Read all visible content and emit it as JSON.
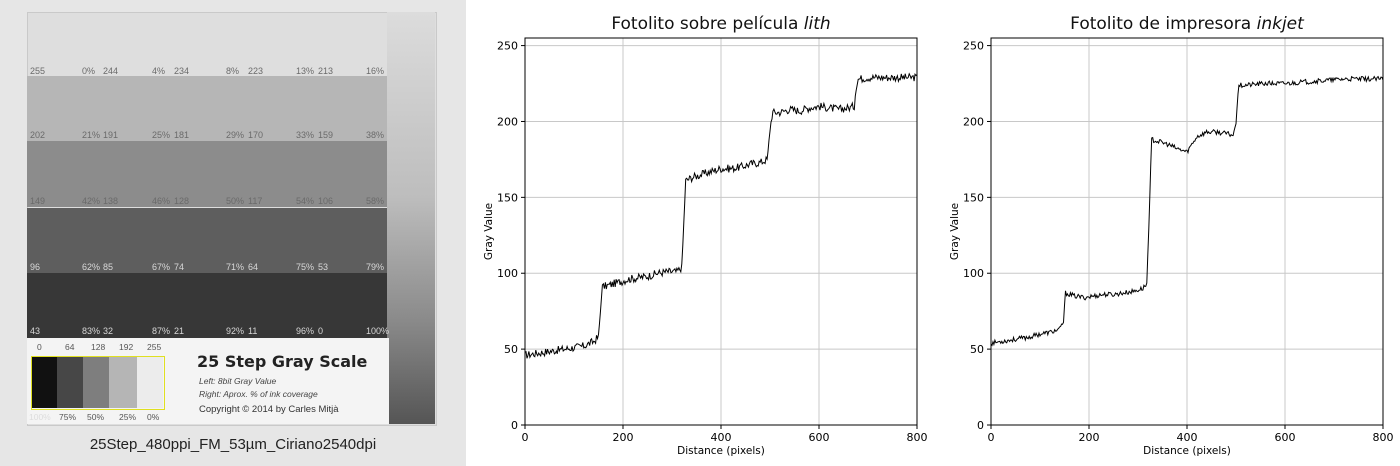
{
  "photo": {
    "caption": "25Step_480ppi_FM_53µm_Ciriano2540dpi",
    "rows": [
      [
        [
          "255",
          "0%"
        ],
        [
          "244",
          "4%"
        ],
        [
          "234",
          "8%"
        ],
        [
          "223",
          "13%"
        ],
        [
          "213",
          "16%"
        ]
      ],
      [
        [
          "202",
          "21%"
        ],
        [
          "191",
          "25%"
        ],
        [
          "181",
          "29%"
        ],
        [
          "170",
          "33%"
        ],
        [
          "159",
          "38%"
        ]
      ],
      [
        [
          "149",
          "42%"
        ],
        [
          "138",
          "46%"
        ],
        [
          "128",
          "50%"
        ],
        [
          "117",
          "54%"
        ],
        [
          "106",
          "58%"
        ]
      ],
      [
        [
          "96",
          "62%"
        ],
        [
          "85",
          "67%"
        ],
        [
          "74",
          "71%"
        ],
        [
          "64",
          "75%"
        ],
        [
          "53",
          "79%"
        ]
      ],
      [
        [
          "43",
          "83%"
        ],
        [
          "32",
          "87%"
        ],
        [
          "21",
          "92%"
        ],
        [
          "11",
          "96%"
        ],
        [
          "0",
          "100%"
        ]
      ]
    ],
    "card": {
      "title": "25 Step Gray Scale",
      "line1": "Left: 8bit Gray Value",
      "line2": "Right: Aprox. % of ink coverage",
      "copyright": "Copyright © 2014 by Carles Mitjà",
      "top_values": [
        "0",
        "64",
        "128",
        "192",
        "255"
      ],
      "bottom_values": [
        "100%",
        "75%",
        "50%",
        "25%",
        "0%"
      ]
    }
  },
  "chart_data": [
    {
      "type": "line",
      "title_plain": "Fotolito sobre película ",
      "title_italic": "lith",
      "xlabel": "Distance (pixels)",
      "ylabel": "Gray Value",
      "xlim": [
        0,
        800
      ],
      "ylim": [
        0,
        255
      ],
      "xticks": [
        0,
        200,
        400,
        600,
        800
      ],
      "yticks": [
        0,
        50,
        100,
        150,
        200,
        250
      ],
      "grid": true,
      "series": [
        {
          "x": [
            0,
            20,
            40,
            60,
            80,
            100,
            120,
            140,
            150,
            155,
            157,
            170,
            190,
            210,
            230,
            250,
            270,
            290,
            310,
            320,
            325,
            328,
            340,
            360,
            380,
            400,
            420,
            440,
            460,
            480,
            495,
            500,
            505,
            520,
            540,
            560,
            580,
            600,
            620,
            640,
            660,
            672,
            675,
            680,
            700,
            720,
            740,
            760,
            780,
            800
          ],
          "y": [
            46,
            47,
            48,
            49,
            50,
            51,
            52,
            55,
            58,
            80,
            91,
            92,
            94,
            96,
            97,
            98,
            100,
            101,
            101,
            104,
            140,
            161,
            163,
            165,
            167,
            169,
            169,
            170,
            172,
            173,
            175,
            195,
            206,
            206,
            208,
            207,
            209,
            210,
            209,
            208,
            209,
            210,
            222,
            228,
            229,
            229,
            229,
            229,
            229,
            229
          ],
          "noise": 2.6
        }
      ]
    },
    {
      "type": "line",
      "title_plain": "Fotolito de impresora ",
      "title_italic": "inkjet",
      "xlabel": "Distance (pixels)",
      "ylabel": "Gray Value",
      "xlim": [
        0,
        800
      ],
      "ylim": [
        0,
        255
      ],
      "xticks": [
        0,
        200,
        400,
        600,
        800
      ],
      "yticks": [
        0,
        50,
        100,
        150,
        200,
        250
      ],
      "grid": true,
      "series": [
        {
          "x": [
            0,
            20,
            40,
            60,
            80,
            100,
            120,
            140,
            148,
            152,
            170,
            190,
            210,
            230,
            250,
            270,
            290,
            310,
            318,
            324,
            328,
            340,
            360,
            380,
            400,
            420,
            440,
            460,
            480,
            495,
            500,
            505,
            520,
            560,
            600,
            640,
            680,
            720,
            760,
            800
          ],
          "y": [
            54,
            55,
            56,
            57,
            58,
            60,
            61,
            63,
            68,
            87,
            85,
            84,
            85,
            86,
            86,
            87,
            88,
            90,
            93,
            150,
            188,
            187,
            185,
            182,
            180,
            190,
            193,
            193,
            192,
            191,
            200,
            224,
            224,
            225,
            225,
            226,
            227,
            228,
            228,
            228
          ],
          "noise": 1.6
        }
      ]
    }
  ]
}
